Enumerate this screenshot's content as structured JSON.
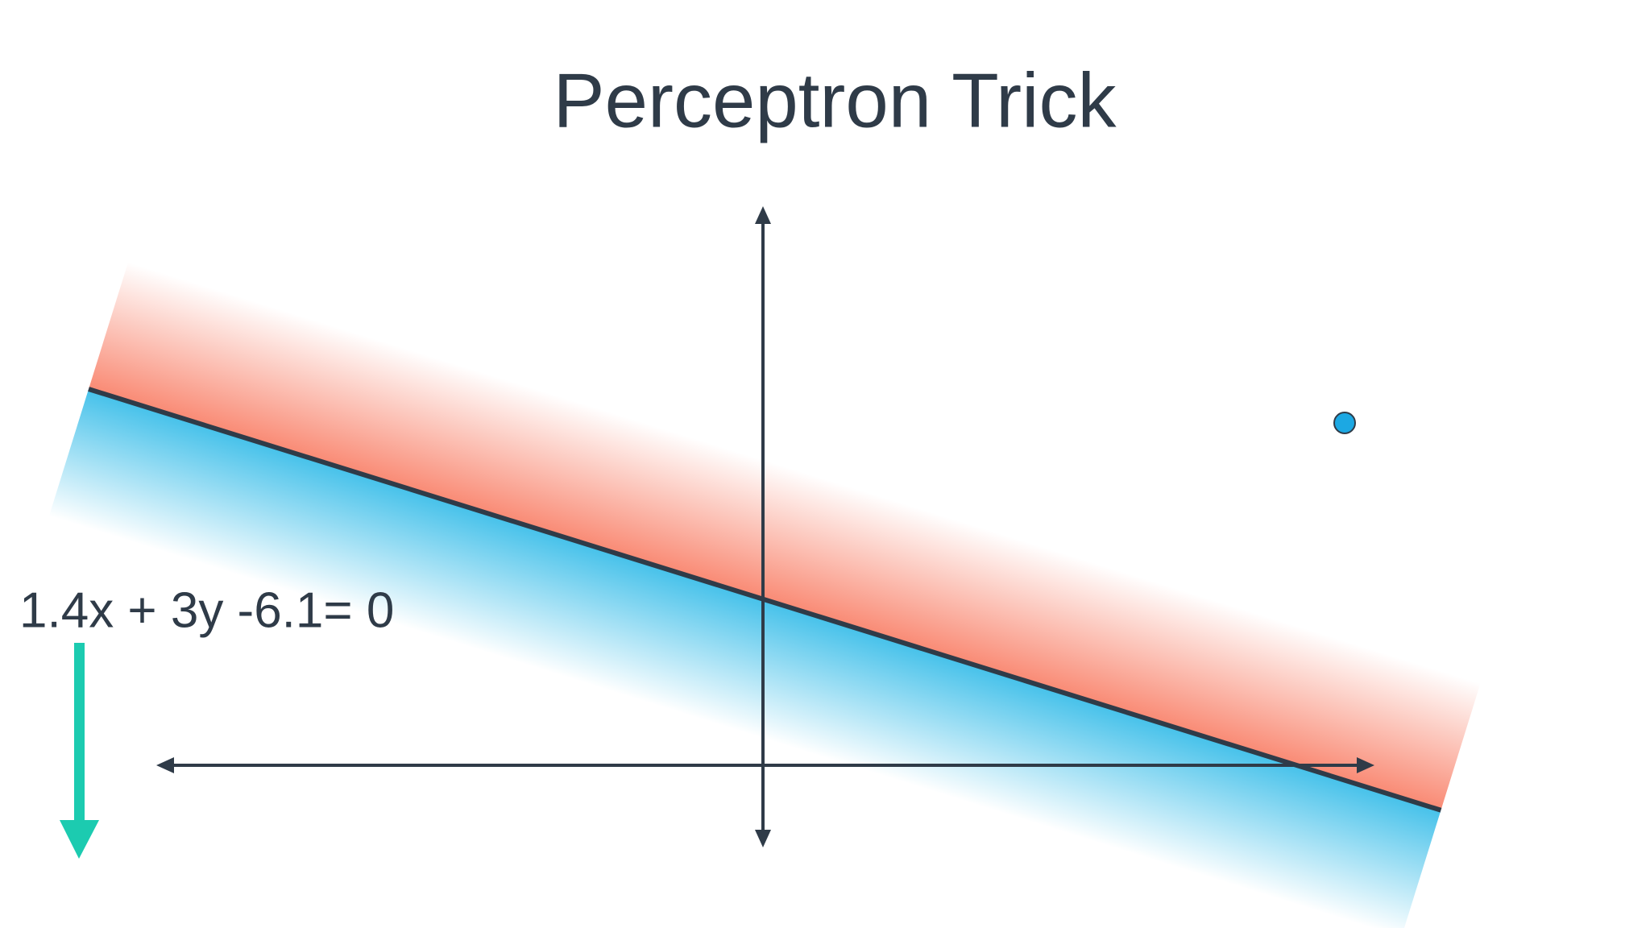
{
  "title": "Perceptron Trick",
  "equation": "1.4x + 3y -6.1= 0"
}
